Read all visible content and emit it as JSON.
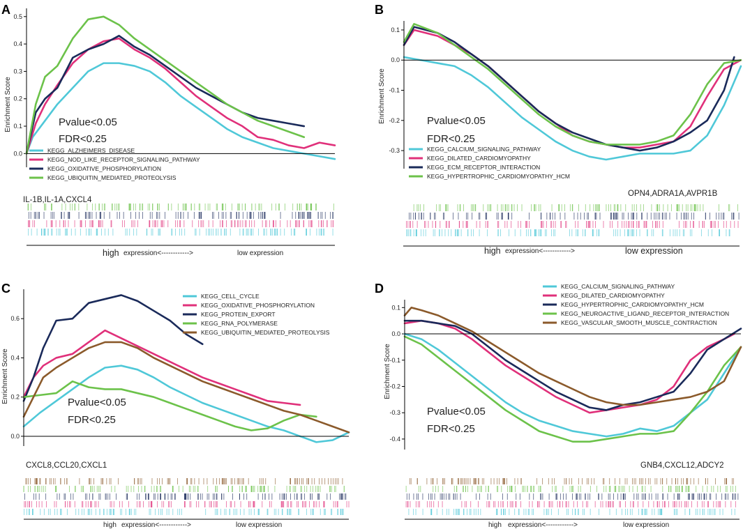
{
  "colors": {
    "cyan": "#4fc8d8",
    "pink": "#e0307a",
    "navy": "#1a2a5a",
    "green": "#6cc24a",
    "brown": "#8b5a2b",
    "axis": "#000000"
  },
  "axis_ylabel": "Enrichment Score",
  "expression_axis": {
    "high": "high",
    "middle": "expression<------------>",
    "low": "low expression"
  },
  "chart_data": [
    {
      "panel": "A",
      "type": "line",
      "ylabel": "Enrichment Score",
      "ylim": [
        -0.05,
        0.53
      ],
      "yticks": [
        "0.0",
        "0.1",
        "0.2",
        "0.3",
        "0.4",
        "0.5"
      ],
      "stats": [
        "Pvalue<0.05",
        "FDR<0.25"
      ],
      "genes": "IL-1B,IL-1A,CXCL4",
      "series": [
        {
          "name": "KEGG_ALZHEIMERS_DISEASE",
          "color": "cyan",
          "x": [
            0,
            0.02,
            0.06,
            0.1,
            0.15,
            0.2,
            0.25,
            0.3,
            0.35,
            0.4,
            0.45,
            0.5,
            0.55,
            0.6,
            0.65,
            0.7,
            0.75,
            0.8,
            0.85,
            0.9,
            0.95,
            1.0
          ],
          "values": [
            0.0,
            0.06,
            0.12,
            0.18,
            0.24,
            0.3,
            0.33,
            0.33,
            0.32,
            0.3,
            0.26,
            0.21,
            0.17,
            0.13,
            0.09,
            0.06,
            0.04,
            0.02,
            0.01,
            0.0,
            -0.01,
            -0.02
          ]
        },
        {
          "name": "KEGG_NOD_LIKE_RECEPTOR_SIGNALING_PATHWAY",
          "color": "pink",
          "x": [
            0,
            0.03,
            0.06,
            0.1,
            0.15,
            0.2,
            0.25,
            0.3,
            0.35,
            0.4,
            0.45,
            0.5,
            0.55,
            0.6,
            0.65,
            0.7,
            0.75,
            0.8,
            0.85,
            0.9,
            0.95,
            1.0
          ],
          "values": [
            0.0,
            0.11,
            0.18,
            0.25,
            0.33,
            0.38,
            0.41,
            0.42,
            0.38,
            0.35,
            0.31,
            0.26,
            0.21,
            0.17,
            0.13,
            0.1,
            0.06,
            0.05,
            0.03,
            0.02,
            0.04,
            0.03
          ]
        },
        {
          "name": "KEGG_OXIDATIVE_PHOSPHORYLATION",
          "color": "navy",
          "x": [
            0,
            0.03,
            0.06,
            0.1,
            0.15,
            0.2,
            0.25,
            0.3,
            0.35,
            0.4,
            0.45,
            0.5,
            0.55,
            0.6,
            0.65,
            0.7,
            0.75,
            0.8,
            0.85,
            0.9
          ],
          "values": [
            0.0,
            0.15,
            0.2,
            0.24,
            0.35,
            0.38,
            0.4,
            0.43,
            0.39,
            0.36,
            0.32,
            0.28,
            0.24,
            0.21,
            0.18,
            0.15,
            0.13,
            0.12,
            0.11,
            0.1
          ]
        },
        {
          "name": "KEGG_UBIQUITIN_MEDIATED_PROTEOLYSIS",
          "color": "green",
          "x": [
            0,
            0.03,
            0.06,
            0.1,
            0.15,
            0.2,
            0.25,
            0.3,
            0.35,
            0.4,
            0.45,
            0.5,
            0.55,
            0.6,
            0.65,
            0.7,
            0.75,
            0.8,
            0.85,
            0.9
          ],
          "values": [
            0.0,
            0.18,
            0.28,
            0.32,
            0.42,
            0.49,
            0.5,
            0.47,
            0.42,
            0.38,
            0.34,
            0.3,
            0.26,
            0.22,
            0.18,
            0.15,
            0.12,
            0.1,
            0.08,
            0.06
          ]
        }
      ]
    },
    {
      "panel": "B",
      "type": "line",
      "ylabel": "Enrichment Score",
      "ylim": [
        -0.36,
        0.13
      ],
      "yticks": [
        "0.1",
        "0.0",
        "-0.1",
        "-0.2",
        "-0.3"
      ],
      "stats": [
        "Pvalue<0.05",
        "FDR<0.25"
      ],
      "genes": "OPN4,ADRA1A,AVPR1B",
      "series": [
        {
          "name": "KEGG_CALCIUM_SIGNALING_PATHWAY",
          "color": "cyan",
          "x": [
            0,
            0.05,
            0.1,
            0.15,
            0.2,
            0.25,
            0.3,
            0.35,
            0.4,
            0.45,
            0.5,
            0.55,
            0.6,
            0.65,
            0.7,
            0.75,
            0.8,
            0.85,
            0.9,
            0.95,
            1.0
          ],
          "values": [
            0.01,
            0.0,
            -0.01,
            -0.02,
            -0.05,
            -0.09,
            -0.14,
            -0.19,
            -0.23,
            -0.27,
            -0.3,
            -0.32,
            -0.33,
            -0.32,
            -0.31,
            -0.31,
            -0.31,
            -0.3,
            -0.25,
            -0.15,
            -0.02
          ]
        },
        {
          "name": "KEGG_DILATED_CARDIOMYOPATHY",
          "color": "pink",
          "x": [
            0,
            0.03,
            0.1,
            0.15,
            0.2,
            0.25,
            0.3,
            0.35,
            0.4,
            0.45,
            0.5,
            0.55,
            0.6,
            0.65,
            0.7,
            0.75,
            0.8,
            0.85,
            0.9,
            0.95,
            1.0
          ],
          "values": [
            0.05,
            0.1,
            0.08,
            0.05,
            0.02,
            -0.02,
            -0.07,
            -0.12,
            -0.17,
            -0.21,
            -0.25,
            -0.27,
            -0.28,
            -0.29,
            -0.29,
            -0.28,
            -0.27,
            -0.22,
            -0.12,
            -0.03,
            0.0
          ]
        },
        {
          "name": "KEGG_ECM_RECEPTOR_INTERACTION",
          "color": "navy",
          "x": [
            0,
            0.03,
            0.1,
            0.15,
            0.2,
            0.25,
            0.3,
            0.35,
            0.4,
            0.45,
            0.5,
            0.55,
            0.6,
            0.65,
            0.7,
            0.75,
            0.8,
            0.85,
            0.9,
            0.95,
            0.98
          ],
          "values": [
            0.05,
            0.11,
            0.09,
            0.06,
            0.02,
            -0.02,
            -0.07,
            -0.12,
            -0.17,
            -0.21,
            -0.24,
            -0.26,
            -0.28,
            -0.29,
            -0.3,
            -0.29,
            -0.27,
            -0.24,
            -0.2,
            -0.1,
            0.01
          ]
        },
        {
          "name": "KEGG_HYPERTROPHIC_CARDIOMYOPATHY_HCM",
          "color": "green",
          "x": [
            0,
            0.03,
            0.1,
            0.15,
            0.2,
            0.25,
            0.3,
            0.35,
            0.4,
            0.45,
            0.5,
            0.55,
            0.6,
            0.65,
            0.7,
            0.75,
            0.8,
            0.85,
            0.9,
            0.95,
            1.0
          ],
          "values": [
            0.06,
            0.12,
            0.09,
            0.05,
            0.01,
            -0.03,
            -0.08,
            -0.13,
            -0.18,
            -0.22,
            -0.25,
            -0.27,
            -0.28,
            -0.28,
            -0.28,
            -0.27,
            -0.25,
            -0.18,
            -0.08,
            -0.01,
            0.0
          ]
        }
      ]
    },
    {
      "panel": "C",
      "type": "line",
      "ylabel": "Enrichment Score",
      "ylim": [
        -0.05,
        0.75
      ],
      "yticks": [
        "0.0",
        "0.2",
        "0.4",
        "0.6"
      ],
      "stats": [
        "Pvalue<0.05",
        "FDR<0.25"
      ],
      "genes": "CXCL8,CCL20,CXCL1",
      "series": [
        {
          "name": "KEGG_CELL_CYCLE",
          "color": "cyan",
          "x": [
            0,
            0.05,
            0.1,
            0.15,
            0.2,
            0.25,
            0.3,
            0.35,
            0.4,
            0.45,
            0.5,
            0.55,
            0.6,
            0.65,
            0.7,
            0.75,
            0.8,
            0.85,
            0.9,
            0.95,
            1.0
          ],
          "values": [
            0.05,
            0.12,
            0.18,
            0.24,
            0.3,
            0.35,
            0.36,
            0.34,
            0.3,
            0.25,
            0.21,
            0.17,
            0.14,
            0.11,
            0.08,
            0.05,
            0.03,
            0.0,
            -0.03,
            -0.02,
            0.02
          ]
        },
        {
          "name": "KEGG_OXIDATIVE_PHOSPHORYLATION",
          "color": "pink",
          "x": [
            0,
            0.03,
            0.06,
            0.1,
            0.15,
            0.2,
            0.25,
            0.3,
            0.35,
            0.4,
            0.45,
            0.5,
            0.55,
            0.6,
            0.65,
            0.7,
            0.75,
            0.8,
            0.85
          ],
          "values": [
            0.2,
            0.3,
            0.36,
            0.4,
            0.42,
            0.48,
            0.54,
            0.5,
            0.46,
            0.42,
            0.38,
            0.34,
            0.3,
            0.27,
            0.24,
            0.21,
            0.18,
            0.17,
            0.16
          ]
        },
        {
          "name": "KEGG_PROTEIN_EXPORT",
          "color": "navy",
          "x": [
            0,
            0.03,
            0.06,
            0.1,
            0.15,
            0.2,
            0.25,
            0.3,
            0.35,
            0.4,
            0.45,
            0.5,
            0.55
          ],
          "values": [
            0.18,
            0.3,
            0.45,
            0.59,
            0.6,
            0.68,
            0.7,
            0.72,
            0.69,
            0.64,
            0.59,
            0.52,
            0.47
          ]
        },
        {
          "name": "KEGG_RNA_POLYMERASE",
          "color": "green",
          "x": [
            0,
            0.05,
            0.1,
            0.15,
            0.2,
            0.25,
            0.3,
            0.35,
            0.4,
            0.45,
            0.5,
            0.55,
            0.6,
            0.65,
            0.7,
            0.75,
            0.8,
            0.85,
            0.9
          ],
          "values": [
            0.2,
            0.21,
            0.22,
            0.28,
            0.25,
            0.24,
            0.24,
            0.22,
            0.2,
            0.17,
            0.14,
            0.11,
            0.08,
            0.05,
            0.03,
            0.04,
            0.08,
            0.11,
            0.1
          ]
        },
        {
          "name": "KEGG_UBIQUITIN_MEDIATED_PROTEOLYSIS",
          "color": "brown",
          "x": [
            0,
            0.03,
            0.06,
            0.1,
            0.15,
            0.2,
            0.25,
            0.3,
            0.35,
            0.4,
            0.45,
            0.5,
            0.55,
            0.6,
            0.65,
            0.7,
            0.75,
            0.8,
            0.85,
            0.9,
            0.95,
            1.0
          ],
          "values": [
            0.1,
            0.2,
            0.3,
            0.35,
            0.4,
            0.45,
            0.48,
            0.48,
            0.45,
            0.4,
            0.36,
            0.32,
            0.28,
            0.25,
            0.22,
            0.19,
            0.16,
            0.13,
            0.11,
            0.08,
            0.05,
            0.02
          ]
        }
      ]
    },
    {
      "panel": "D",
      "type": "line",
      "ylabel": "Enrichment Score",
      "ylim": [
        -0.44,
        0.13
      ],
      "yticks": [
        "0.1",
        "0.0",
        "-0.1",
        "-0.2",
        "-0.3",
        "-0.4"
      ],
      "stats": [
        "Pvalue<0.05",
        "FDR<0.25"
      ],
      "genes": "GNB4,CXCL12,ADCY2",
      "series": [
        {
          "name": "KEGG_CALCIUM_SIGNALING_PATHWAY",
          "color": "cyan",
          "x": [
            0,
            0.05,
            0.1,
            0.15,
            0.2,
            0.25,
            0.3,
            0.35,
            0.4,
            0.45,
            0.5,
            0.55,
            0.6,
            0.65,
            0.7,
            0.75,
            0.8,
            0.85,
            0.9,
            0.95,
            1.0
          ],
          "values": [
            0.0,
            -0.02,
            -0.06,
            -0.11,
            -0.16,
            -0.21,
            -0.26,
            -0.3,
            -0.33,
            -0.35,
            -0.37,
            -0.38,
            -0.39,
            -0.38,
            -0.36,
            -0.37,
            -0.35,
            -0.3,
            -0.25,
            -0.15,
            -0.05
          ]
        },
        {
          "name": "KEGG_DILATED_CARDIOMYOPATHY",
          "color": "pink",
          "x": [
            0,
            0.05,
            0.1,
            0.15,
            0.2,
            0.25,
            0.3,
            0.35,
            0.4,
            0.45,
            0.5,
            0.55,
            0.6,
            0.65,
            0.7,
            0.75,
            0.8,
            0.85,
            0.9,
            0.95,
            0.98
          ],
          "values": [
            0.04,
            0.05,
            0.04,
            0.02,
            -0.02,
            -0.07,
            -0.12,
            -0.16,
            -0.2,
            -0.24,
            -0.27,
            -0.3,
            -0.29,
            -0.28,
            -0.27,
            -0.25,
            -0.2,
            -0.1,
            -0.05,
            -0.02,
            0.0
          ]
        },
        {
          "name": "KEGG_HYPERTROPHIC_CARDIOMYOPATHY_HCM",
          "color": "navy",
          "x": [
            0,
            0.05,
            0.1,
            0.15,
            0.2,
            0.25,
            0.3,
            0.35,
            0.4,
            0.45,
            0.5,
            0.55,
            0.6,
            0.65,
            0.7,
            0.75,
            0.8,
            0.85,
            0.9,
            0.95,
            1.0
          ],
          "values": [
            0.05,
            0.05,
            0.04,
            0.03,
            0.0,
            -0.05,
            -0.1,
            -0.14,
            -0.18,
            -0.22,
            -0.25,
            -0.28,
            -0.29,
            -0.27,
            -0.26,
            -0.24,
            -0.22,
            -0.15,
            -0.06,
            -0.02,
            0.02
          ]
        },
        {
          "name": "KEGG_NEUROACTIVE_LIGAND_RECEPTOR_INTERACTION",
          "color": "green",
          "x": [
            0,
            0.05,
            0.1,
            0.15,
            0.2,
            0.25,
            0.3,
            0.35,
            0.4,
            0.45,
            0.5,
            0.55,
            0.6,
            0.65,
            0.7,
            0.75,
            0.8,
            0.85,
            0.9,
            0.95,
            1.0
          ],
          "values": [
            -0.01,
            -0.04,
            -0.09,
            -0.14,
            -0.19,
            -0.24,
            -0.29,
            -0.33,
            -0.37,
            -0.39,
            -0.41,
            -0.41,
            -0.4,
            -0.39,
            -0.38,
            -0.38,
            -0.37,
            -0.3,
            -0.22,
            -0.12,
            -0.05
          ]
        },
        {
          "name": "KEGG_VASCULAR_SMOOTH_MUSCLE_CONTRACTION",
          "color": "brown",
          "x": [
            0,
            0.02,
            0.05,
            0.1,
            0.15,
            0.2,
            0.25,
            0.3,
            0.35,
            0.4,
            0.45,
            0.5,
            0.55,
            0.6,
            0.65,
            0.7,
            0.75,
            0.8,
            0.85,
            0.9,
            0.95,
            1.0
          ],
          "values": [
            0.07,
            0.1,
            0.09,
            0.07,
            0.04,
            0.01,
            -0.03,
            -0.07,
            -0.11,
            -0.15,
            -0.18,
            -0.21,
            -0.24,
            -0.26,
            -0.27,
            -0.27,
            -0.26,
            -0.25,
            -0.24,
            -0.22,
            -0.18,
            -0.05
          ]
        }
      ]
    }
  ]
}
